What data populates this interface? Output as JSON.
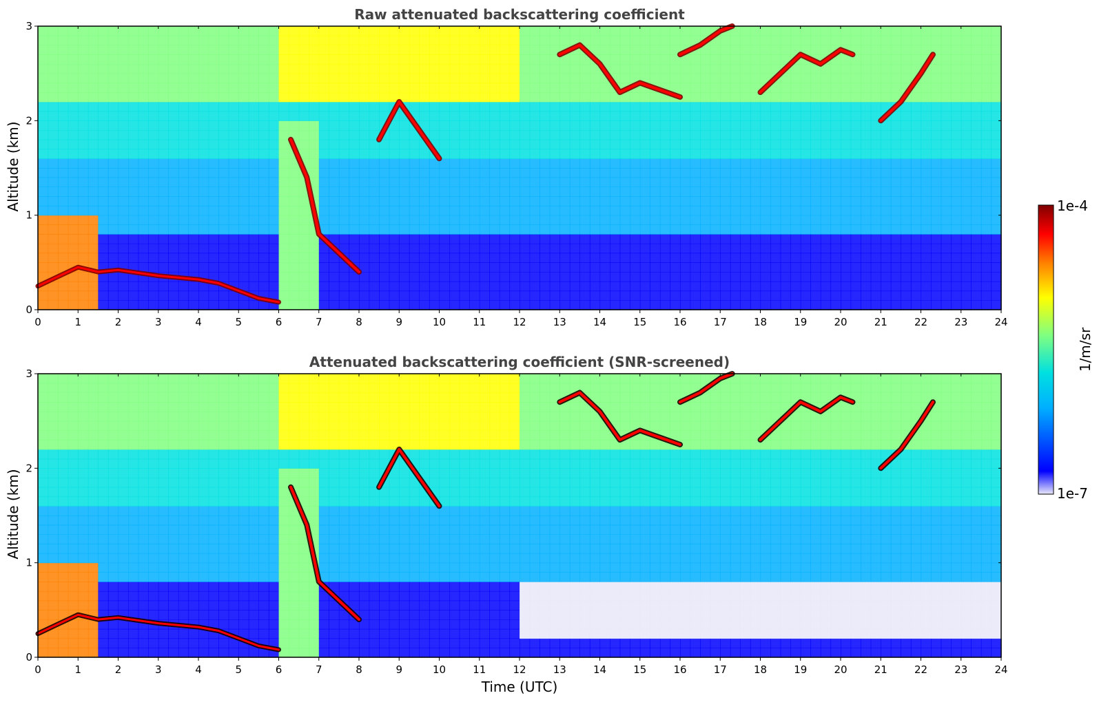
{
  "chart_data": [
    {
      "type": "heatmap",
      "title": "Raw attenuated backscattering coefficient",
      "xlabel": "",
      "ylabel": "Altitude (km)",
      "xlim": [
        0,
        24
      ],
      "ylim": [
        0,
        3
      ],
      "x_ticks": [
        "0",
        "1",
        "2",
        "3",
        "4",
        "5",
        "6",
        "7",
        "8",
        "9",
        "10",
        "11",
        "12",
        "13",
        "14",
        "15",
        "16",
        "17",
        "18",
        "19",
        "20",
        "21",
        "22",
        "23",
        "24"
      ],
      "y_ticks": [
        "0",
        "1",
        "2",
        "3"
      ],
      "grid": false,
      "features": [
        {
          "kind": "boundary_layer_top",
          "points": [
            [
              0,
              0.25
            ],
            [
              0.5,
              0.35
            ],
            [
              1,
              0.45
            ],
            [
              1.5,
              0.4
            ],
            [
              2,
              0.42
            ],
            [
              3,
              0.36
            ],
            [
              4,
              0.32
            ],
            [
              4.5,
              0.28
            ],
            [
              5,
              0.2
            ],
            [
              5.5,
              0.12
            ],
            [
              6,
              0.08
            ]
          ]
        },
        {
          "kind": "cloud",
          "points": [
            [
              6.3,
              1.8
            ],
            [
              6.7,
              1.4
            ],
            [
              7,
              0.8
            ],
            [
              7.5,
              0.6
            ],
            [
              8,
              0.4
            ]
          ]
        },
        {
          "kind": "cloud",
          "points": [
            [
              8.5,
              1.8
            ],
            [
              9,
              2.2
            ],
            [
              9.5,
              1.9
            ],
            [
              10,
              1.6
            ]
          ]
        },
        {
          "kind": "cloud",
          "points": [
            [
              13,
              2.7
            ],
            [
              13.5,
              2.8
            ],
            [
              14,
              2.6
            ],
            [
              14.5,
              2.3
            ],
            [
              15,
              2.4
            ],
            [
              16,
              2.25
            ]
          ]
        },
        {
          "kind": "cloud",
          "points": [
            [
              16,
              2.7
            ],
            [
              16.5,
              2.8
            ],
            [
              17,
              2.95
            ],
            [
              17.3,
              3.0
            ]
          ]
        },
        {
          "kind": "cloud",
          "points": [
            [
              18,
              2.3
            ],
            [
              18.5,
              2.5
            ],
            [
              19,
              2.7
            ],
            [
              19.5,
              2.6
            ],
            [
              20,
              2.75
            ],
            [
              20.3,
              2.7
            ]
          ]
        },
        {
          "kind": "cloud",
          "points": [
            [
              21,
              2.0
            ],
            [
              21.5,
              2.2
            ],
            [
              22,
              2.5
            ],
            [
              22.3,
              2.7
            ]
          ]
        }
      ]
    },
    {
      "type": "heatmap",
      "title": "Attenuated backscattering coefficient (SNR-screened)",
      "xlabel": "Time (UTC)",
      "ylabel": "Altitude (km)",
      "xlim": [
        0,
        24
      ],
      "ylim": [
        0,
        3
      ],
      "x_ticks": [
        "0",
        "1",
        "2",
        "3",
        "4",
        "5",
        "6",
        "7",
        "8",
        "9",
        "10",
        "11",
        "12",
        "13",
        "14",
        "15",
        "16",
        "17",
        "18",
        "19",
        "20",
        "21",
        "22",
        "23",
        "24"
      ],
      "y_ticks": [
        "0",
        "1",
        "2",
        "3"
      ],
      "grid": false,
      "features": [
        {
          "kind": "boundary_layer_top",
          "points": [
            [
              0,
              0.25
            ],
            [
              0.5,
              0.35
            ],
            [
              1,
              0.45
            ],
            [
              1.5,
              0.4
            ],
            [
              2,
              0.42
            ],
            [
              3,
              0.36
            ],
            [
              4,
              0.32
            ],
            [
              4.5,
              0.28
            ],
            [
              5,
              0.2
            ],
            [
              5.5,
              0.12
            ],
            [
              6,
              0.08
            ]
          ]
        },
        {
          "kind": "cloud",
          "points": [
            [
              6.3,
              1.8
            ],
            [
              6.7,
              1.4
            ],
            [
              7,
              0.8
            ],
            [
              7.5,
              0.6
            ],
            [
              8,
              0.4
            ]
          ]
        },
        {
          "kind": "cloud",
          "points": [
            [
              8.5,
              1.8
            ],
            [
              9,
              2.2
            ],
            [
              9.5,
              1.9
            ],
            [
              10,
              1.6
            ]
          ]
        },
        {
          "kind": "cloud",
          "points": [
            [
              13,
              2.7
            ],
            [
              13.5,
              2.8
            ],
            [
              14,
              2.6
            ],
            [
              14.5,
              2.3
            ],
            [
              15,
              2.4
            ],
            [
              16,
              2.25
            ]
          ]
        },
        {
          "kind": "cloud",
          "points": [
            [
              16,
              2.7
            ],
            [
              16.5,
              2.8
            ],
            [
              17,
              2.95
            ],
            [
              17.3,
              3.0
            ]
          ]
        },
        {
          "kind": "cloud",
          "points": [
            [
              18,
              2.3
            ],
            [
              18.5,
              2.5
            ],
            [
              19,
              2.7
            ],
            [
              19.5,
              2.6
            ],
            [
              20,
              2.75
            ],
            [
              20.3,
              2.7
            ]
          ]
        },
        {
          "kind": "cloud",
          "points": [
            [
              21,
              2.0
            ],
            [
              21.5,
              2.2
            ],
            [
              22,
              2.5
            ],
            [
              22.3,
              2.7
            ]
          ]
        }
      ]
    }
  ],
  "colorbar": {
    "label": "1/m/sr",
    "max_label": "1e-4",
    "min_label": "1e-7",
    "colormap": "jet",
    "colors": [
      "#e8e8f8",
      "#0000ff",
      "#00b0ff",
      "#00e0e0",
      "#80ff80",
      "#ffff00",
      "#ff8000",
      "#ff0000",
      "#800000"
    ]
  }
}
